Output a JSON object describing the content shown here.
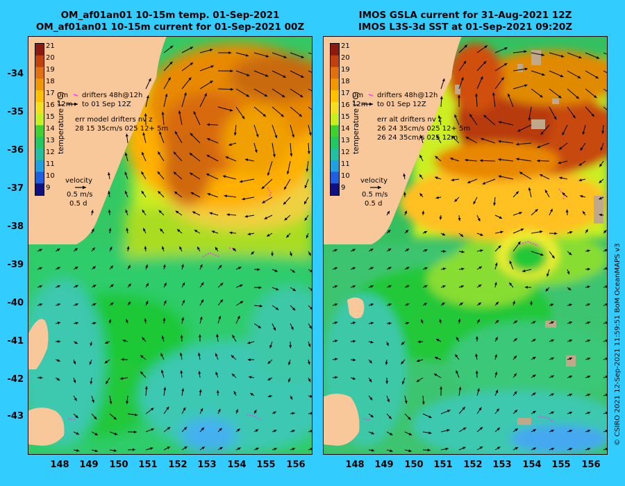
{
  "colors": {
    "background": "#33ccff",
    "land": "#f9c89a",
    "drifter": "#ff33ff"
  },
  "left_panel": {
    "title_line1": "OM_af01an01 10-15m temp. 01-Sep-2021",
    "title_line2": "OM_af01an01 10-15m current for 01-Sep-2021 00Z",
    "legend_drifters_line1": "drifters 48h@12h",
    "legend_drifters_line2": "to 01 Sep 12Z",
    "legend_depth_a": "0m",
    "legend_depth_b": "12m",
    "legend_err_title": "err model drifters nv z",
    "legend_err_rows": [
      "28 15 35cm/s 025 12+ 5m"
    ]
  },
  "right_panel": {
    "title_line1": "IMOS GSLA current for 31-Aug-2021 12Z",
    "title_line2": "IMOS L3S-3d SST at 01-Sep-2021 09:20Z",
    "legend_drifters_line1": "drifters 48h@12h",
    "legend_drifters_line2": "to 01 Sep 12Z",
    "legend_depth_a": "0m",
    "legend_depth_b": "12m",
    "legend_err_title": "err alt drifters nv z",
    "legend_err_rows": [
      "26 24 35cm/s 025 12+ 5m",
      "26 24 35cm/s 025 12m"
    ]
  },
  "colorbar": {
    "label": "temperature (°C)",
    "ticks": [
      "21",
      "20",
      "19",
      "18",
      "17",
      "16",
      "15",
      "14",
      "13",
      "12",
      "11",
      "10",
      "9"
    ]
  },
  "velocity_legend": {
    "title": "velocity",
    "speed": "0.5 m/s",
    "duration": "0.5 d"
  },
  "axes": {
    "y_ticks": [
      "-34",
      "-35",
      "-36",
      "-37",
      "-38",
      "-39",
      "-40",
      "-41",
      "-42",
      "-43"
    ],
    "x_ticks": [
      "148",
      "149",
      "150",
      "151",
      "152",
      "153",
      "154",
      "155",
      "156"
    ]
  },
  "credit": "© CSIRO 2021  12-Sep-2021 11:59:51 BoM OceanMAPS v3"
}
